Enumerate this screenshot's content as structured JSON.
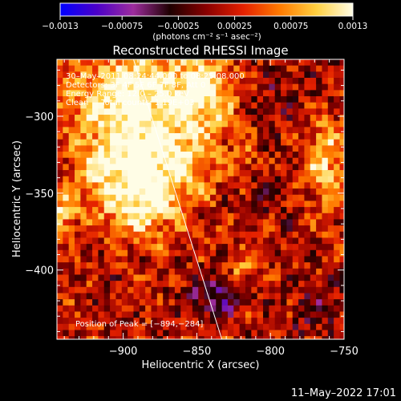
{
  "colorbar": {
    "ticks": [
      "-0.0013",
      "-0.00075",
      "-0.00025",
      "0.00025",
      "0.00075",
      "0.0013"
    ],
    "unit_label": "(photons cm⁻² s⁻¹ asec⁻²)",
    "range": [
      -0.0013,
      0.0013
    ],
    "stops": [
      "#0000ff",
      "#4b00c8",
      "#9d2c9d",
      "#1e0000",
      "#8a0000",
      "#e42000",
      "#ff7a00",
      "#ffd040",
      "#fffde6"
    ]
  },
  "chart_data": {
    "type": "heatmap",
    "title": "Reconstructed RHESSI Image",
    "xlabel": "Heliocentric X (arcsec)",
    "ylabel": "Heliocentric Y (arcsec)",
    "xlim": [
      -945,
      -750
    ],
    "ylim": [
      -445,
      -263
    ],
    "xticks": [
      -900,
      -850,
      -800,
      -750
    ],
    "xtick_labels": [
      "−900",
      "−850",
      "−800",
      "−750"
    ],
    "yticks": [
      -300,
      -350,
      -400
    ],
    "ytick_labels": [
      "−300",
      "−350",
      "−400"
    ],
    "annotations": [
      "30–May–2011 08:24:44.000 to 08:25:08.000",
      "Detectors: 3F 4F 5F 6F 7F 8F, Att 0",
      "Energy Range: 12.0 – 25.0 keV",
      "Clean     Total counts: 1.19E+03"
    ],
    "peak_label": "Position of Peak = [−894,−284]",
    "peak_position": [
      -894,
      -284
    ],
    "limb_line": [
      [
        -893,
        -263
      ],
      [
        -833,
        -445
      ]
    ],
    "sources": [
      {
        "x": -895,
        "y": -287,
        "sx": 28,
        "sy": 22,
        "amp": 0.00125
      },
      {
        "x": -872,
        "y": -330,
        "sx": 22,
        "sy": 18,
        "amp": 0.0011
      },
      {
        "x": -845,
        "y": -285,
        "sx": 14,
        "sy": 16,
        "amp": 0.00105
      },
      {
        "x": -888,
        "y": -360,
        "sx": 18,
        "sy": 14,
        "amp": 0.0009
      },
      {
        "x": -915,
        "y": -333,
        "sx": 14,
        "sy": 16,
        "amp": 0.00075
      },
      {
        "x": -763,
        "y": -330,
        "sx": 9,
        "sy": 22,
        "amp": 0.00085
      },
      {
        "x": -940,
        "y": -362,
        "sx": 7,
        "sy": 9,
        "amp": 0.0008
      },
      {
        "x": -818,
        "y": -400,
        "sx": 5,
        "sy": 5,
        "amp": 0.00075
      },
      {
        "x": -818,
        "y": -330,
        "sx": 6,
        "sy": 10,
        "amp": 0.00045
      },
      {
        "x": -838,
        "y": -418,
        "sx": 12,
        "sy": 9,
        "amp": -0.0008
      },
      {
        "x": -805,
        "y": -350,
        "sx": 14,
        "sy": 14,
        "amp": -0.00025
      },
      {
        "x": -768,
        "y": -425,
        "sx": 16,
        "sy": 14,
        "amp": -0.00035
      },
      {
        "x": -790,
        "y": -290,
        "sx": 22,
        "sy": 18,
        "amp": -0.0002
      }
    ],
    "background_level": 0.00018
  },
  "footer": {
    "timestamp": "11–May–2022 17:01"
  }
}
